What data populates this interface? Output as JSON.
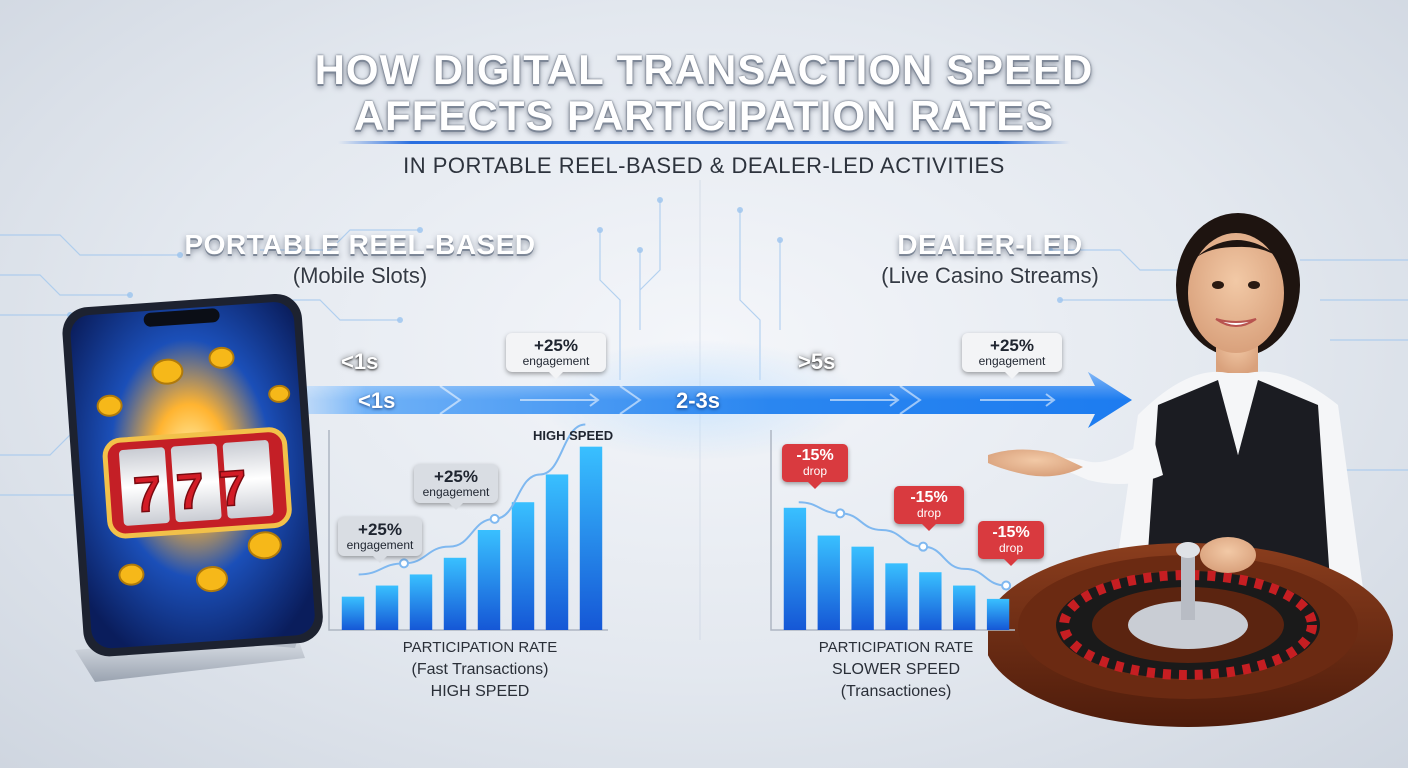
{
  "title": {
    "line1": "HOW DIGITAL TRANSACTION SPEED",
    "line2": "AFFECTS PARTICIPATION RATES",
    "subtitle": "IN PORTABLE REEL-BASED & DEALER-LED ACTIVITIES"
  },
  "left_section": {
    "heading": "PORTABLE REEL-BASED",
    "subheading": "(Mobile Slots)"
  },
  "right_section": {
    "heading": "DEALER-LED",
    "subheading": "(Live Casino Streams)"
  },
  "timeline": {
    "labels_above": [
      "<1s",
      ">5s"
    ],
    "labels_on_arrow": [
      "<1s",
      "2-3s"
    ],
    "callouts": [
      {
        "value": "+25%",
        "text": "engagement"
      },
      {
        "value": "+25%",
        "text": "engagement"
      }
    ]
  },
  "reel_symbols": "777",
  "colors": {
    "accent_blue": "#1f7df0",
    "bar_light": "#39c0ff",
    "bar_dark": "#1557d6",
    "drop_red": "#d93a3f",
    "title_rule": "#2a6fe0"
  },
  "chart_data": [
    {
      "type": "bar",
      "trend_label": "HIGH SPEED",
      "values": [
        3.0,
        4.0,
        5.0,
        6.5,
        9.0,
        11.5,
        14.0,
        16.5
      ],
      "trend_line": [
        5.0,
        6.0,
        7.5,
        10.0,
        14.0,
        18.5
      ],
      "annotations": [
        {
          "value": "+25%",
          "text": "engagement"
        },
        {
          "value": "+25%",
          "text": "engagement"
        }
      ],
      "caption": [
        "PARTICIPATION RATE",
        "(Fast Transactions)",
        "HIGH SPEED"
      ]
    },
    {
      "type": "bar",
      "values": [
        11.0,
        8.5,
        7.5,
        6.0,
        5.2,
        4.0,
        2.8
      ],
      "trend_line": [
        11.5,
        10.5,
        9.0,
        7.5,
        5.5,
        4.0
      ],
      "annotations": [
        {
          "value": "-15%",
          "text": "drop"
        },
        {
          "value": "-15%",
          "text": "drop"
        },
        {
          "value": "-15%",
          "text": "drop"
        }
      ],
      "caption": [
        "PARTICIPATION RATE",
        "SLOWER SPEED",
        "(Transactiones)"
      ]
    }
  ]
}
